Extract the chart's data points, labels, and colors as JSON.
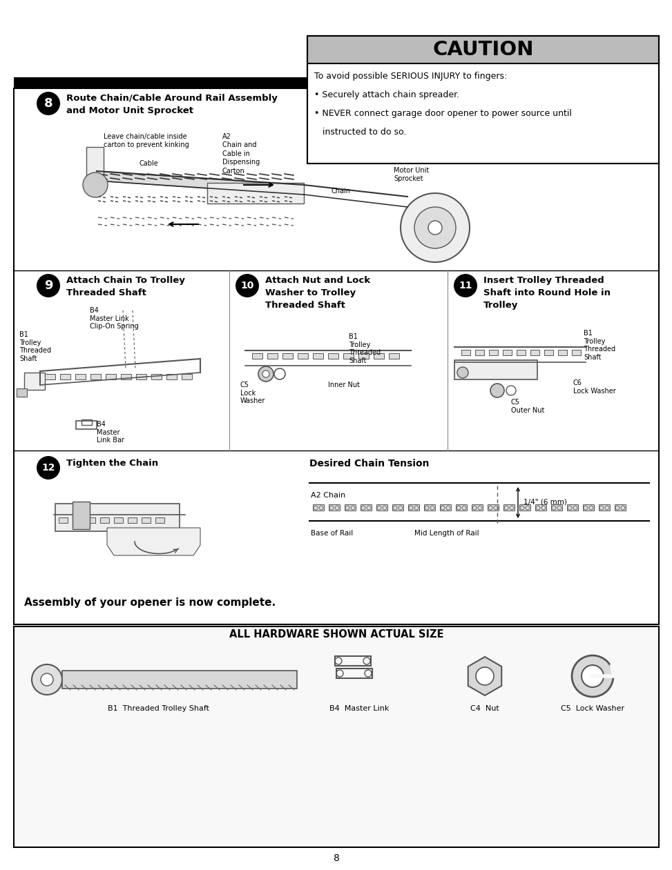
{
  "page_bg": "#ffffff",
  "page_number": "8",
  "caution_title": "CAUTION",
  "caution_title_bg": "#c0c0c0",
  "caution_body": [
    "To avoid possible SERIOUS INJURY to fingers:",
    "• Securely attach chain spreader.",
    "• NEVER connect garage door opener to power source until",
    "   instructed to do so."
  ],
  "step8_title": "Route Chain/Cable Around Rail Assembly\nand Motor Unit Sprocket",
  "step9_title": "Attach Chain To Trolley\nThreaded Shaft",
  "step10_title": "Attach Nut and Lock\nWasher to Trolley\nThreaded Shaft",
  "step11_title": "Insert Trolley Threaded\nShaft into Round Hole in\nTrolley",
  "step12_title": "Tighten the Chain",
  "tension_title": "Desired Chain Tension",
  "assembly_text": "Assembly of your opener is now complete.",
  "hw_title": "ALL HARDWARE SHOWN ACTUAL SIZE",
  "hw_labels": [
    "B1  Threaded Trolley Shaft",
    "B4  Master Link",
    "C4  Nut",
    "C5  Lock Washer"
  ]
}
